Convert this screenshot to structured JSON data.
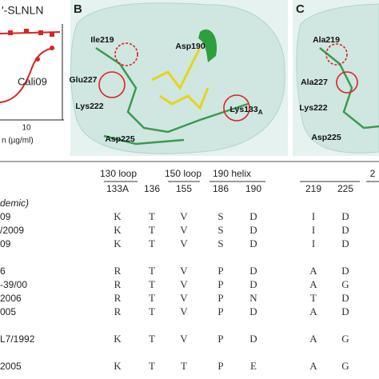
{
  "panel_a": {
    "title": "'-SLNLN",
    "curve_label": "Cali09",
    "x_tick": "10",
    "x_label": "n (µg/ml)"
  },
  "panel_b": {
    "letter": "B",
    "labels": [
      {
        "text": "Ile219"
      },
      {
        "text": "Asp190"
      },
      {
        "text": "Glu227"
      },
      {
        "text": "Lys222"
      },
      {
        "text": "Lys133",
        "sub": "A"
      },
      {
        "text": "Asp225"
      }
    ]
  },
  "panel_c": {
    "letter": "C",
    "labels": [
      {
        "text": "Ala219"
      },
      {
        "text": "Ala227"
      },
      {
        "text": "Lys222"
      },
      {
        "text": "Asp225"
      }
    ]
  },
  "table": {
    "groups": [
      "130 loop",
      "150 loop",
      "190 helix",
      "2"
    ],
    "columns": [
      "133A",
      "136",
      "155",
      "186",
      "190",
      "219",
      "225"
    ],
    "rows": [
      {
        "name": "demic)"
      },
      {
        "name": "09",
        "values": [
          "K",
          "T",
          "V",
          "S",
          "D",
          "I",
          "D"
        ]
      },
      {
        "name": "/2009",
        "values": [
          "K",
          "T",
          "V",
          "S",
          "D",
          "I",
          "D"
        ]
      },
      {
        "name": "09",
        "values": [
          "K",
          "T",
          "V",
          "S",
          "D",
          "I",
          "D"
        ]
      },
      {
        "name": "6",
        "values": [
          "R",
          "T",
          "V",
          "P",
          "D",
          "A",
          "D"
        ]
      },
      {
        "name": "-39/00",
        "values": [
          "R",
          "T",
          "V",
          "P",
          "D",
          "A",
          "G"
        ]
      },
      {
        "name": "2006",
        "values": [
          "R",
          "T",
          "V",
          "P",
          "N",
          "T",
          "D"
        ]
      },
      {
        "name": "005",
        "values": [
          "R",
          "T",
          "V",
          "P",
          "D",
          "A",
          "D"
        ]
      },
      {
        "name": "L7/1992",
        "values": [
          "K",
          "T",
          "V",
          "P",
          "D",
          "A",
          "G"
        ]
      },
      {
        "name": "2005",
        "values": [
          "K",
          "T",
          "T",
          "P",
          "E",
          "A",
          "G"
        ]
      }
    ]
  }
}
